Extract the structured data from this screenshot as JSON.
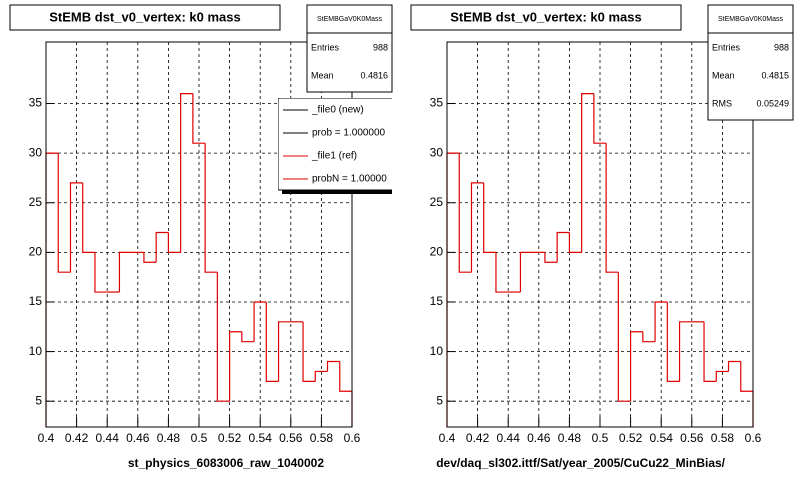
{
  "chart_data": [
    {
      "type": "histogram",
      "title": "StEMB dst_v0_vertex: k0 mass",
      "xlabel": "st_physics_6083006_raw_1040002",
      "bins": [
        0.4,
        0.408,
        0.416,
        0.424,
        0.432,
        0.44,
        0.448,
        0.456,
        0.464,
        0.472,
        0.48,
        0.488,
        0.496,
        0.504,
        0.512,
        0.52,
        0.528,
        0.536,
        0.544,
        0.552,
        0.56,
        0.568,
        0.576,
        0.584,
        0.592,
        0.6
      ],
      "values": [
        30,
        18,
        27,
        20,
        16,
        16,
        20,
        20,
        19,
        22,
        20,
        36,
        31,
        18,
        5,
        12,
        11,
        15,
        7,
        13,
        13,
        7,
        8,
        9,
        6
      ],
      "color": "#e00000",
      "xlim": [
        0.4,
        0.6
      ],
      "ylim": [
        2.4,
        41.2
      ],
      "xticks": [
        0.4,
        0.42,
        0.44,
        0.46,
        0.48,
        0.5,
        0.52,
        0.54,
        0.56,
        0.58,
        0.6
      ],
      "yticks": [
        5,
        10,
        15,
        20,
        25,
        30,
        35
      ],
      "grid": true,
      "stats": {
        "name": "StEMBGaV0K0Mass",
        "rows": [
          {
            "label": "Entries",
            "value": 988
          },
          {
            "label": "Mean",
            "value": 0.4816
          }
        ]
      },
      "legend": [
        {
          "name": "_file0 (new)",
          "color": "#000000"
        },
        {
          "name": "prob = 1.000000",
          "color": "#000000"
        },
        {
          "name": "_file1 (ref)",
          "color": "#e00000"
        },
        {
          "name": "probN = 1.00000",
          "color": "#e00000"
        }
      ]
    },
    {
      "type": "histogram",
      "title": "StEMB dst_v0_vertex: k0 mass",
      "xlabel": "dev/daq_sl302.ittf/Sat/year_2005/CuCu22_MinBias/",
      "bins": [
        0.4,
        0.408,
        0.416,
        0.424,
        0.432,
        0.44,
        0.448,
        0.456,
        0.464,
        0.472,
        0.48,
        0.488,
        0.496,
        0.504,
        0.512,
        0.52,
        0.528,
        0.536,
        0.544,
        0.552,
        0.56,
        0.568,
        0.576,
        0.584,
        0.592,
        0.6
      ],
      "values": [
        30,
        18,
        27,
        20,
        16,
        16,
        20,
        20,
        19,
        22,
        20,
        36,
        31,
        18,
        5,
        12,
        11,
        15,
        7,
        13,
        13,
        7,
        8,
        9,
        6
      ],
      "color": "#e00000",
      "xlim": [
        0.4,
        0.6
      ],
      "ylim": [
        2.4,
        41.2
      ],
      "xticks": [
        0.4,
        0.42,
        0.44,
        0.46,
        0.48,
        0.5,
        0.52,
        0.54,
        0.56,
        0.58,
        0.6
      ],
      "yticks": [
        5,
        10,
        15,
        20,
        25,
        30,
        35
      ],
      "grid": true,
      "stats": {
        "name": "StEMBGaV0K0Mass",
        "rows": [
          {
            "label": "Entries",
            "value": 988
          },
          {
            "label": "Mean",
            "value": 0.4815
          },
          {
            "label": "RMS",
            "value": 0.05249
          }
        ]
      }
    }
  ]
}
